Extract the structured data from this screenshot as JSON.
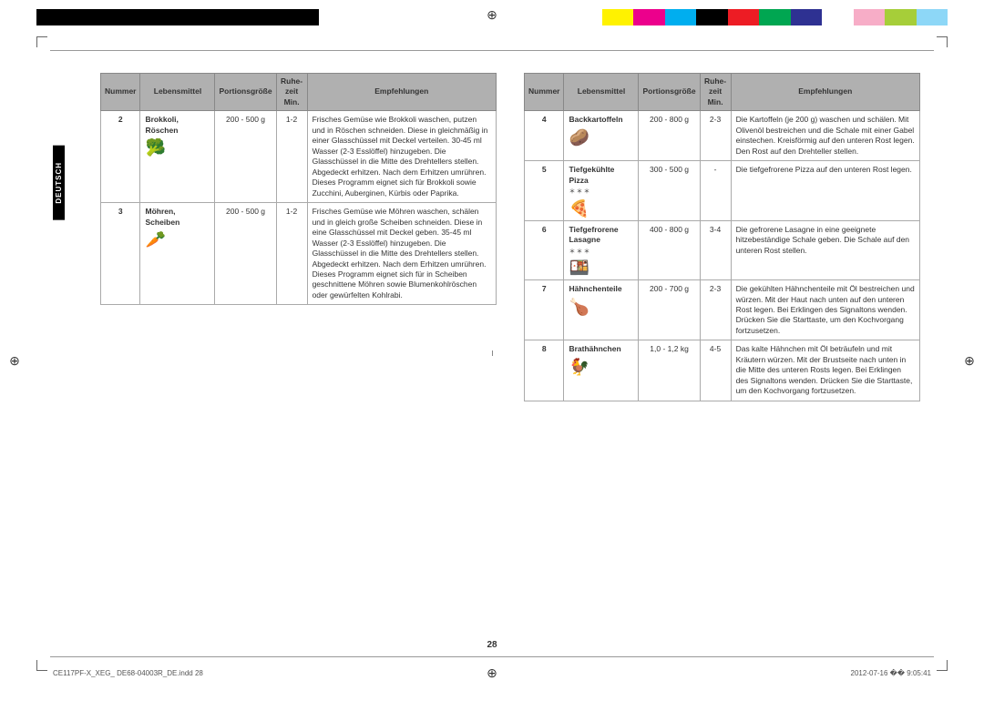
{
  "colorbar": [
    "#000",
    "#000",
    "#000",
    "#000",
    "#000",
    "#000",
    "#000",
    "#000",
    "#000",
    "#fff",
    "#fff",
    "#fff",
    "#fff",
    "#fff",
    "#fff",
    "#fff",
    "#fff",
    "#fff",
    "#fff200",
    "#ec008c",
    "#00aeef",
    "#000",
    "#ed1c24",
    "#00a651",
    "#2e3192",
    "#fff",
    "#f7adc7",
    "#a6ce39",
    "#8dd7f7"
  ],
  "lang_tab": "DEUTSCH",
  "headers": {
    "num": "Nummer",
    "food": "Lebensmittel",
    "portion": "Portionsgröße",
    "rest": "Ruhe-\nzeit\nMin.",
    "rec": "Empfehlungen"
  },
  "left_rows": [
    {
      "num": "2",
      "food_bold": "Brokkoli, Röschen",
      "icon": "broccoli-icon",
      "glyph": "🥦",
      "portion": "200 - 500 g",
      "rest": "1-2",
      "rec": "Frisches Gemüse wie Brokkoli waschen, putzen und in Röschen schneiden. Diese in gleichmäßig in einer Glasschüssel mit Deckel verteilen. 30-45 ml Wasser (2-3 Esslöffel) hinzugeben. Die Glasschüssel in die Mitte des Drehtellers stellen. Abgedeckt erhitzen. Nach dem Erhitzen umrühren. Dieses Programm eignet sich für Brokkoli sowie Zucchini, Auberginen, Kürbis oder Paprika."
    },
    {
      "num": "3",
      "food_bold": "Möhren, Scheiben",
      "icon": "carrot-icon",
      "glyph": "🥕",
      "portion": "200 - 500 g",
      "rest": "1-2",
      "rec": "Frisches Gemüse wie Möhren waschen, schälen und in gleich große Scheiben schneiden. Diese in eine Glasschüssel mit Deckel geben. 35-45 ml Wasser (2-3 Esslöffel) hinzugeben. Die Glasschüssel in die Mitte des Drehtellers stellen. Abgedeckt erhitzen. Nach dem Erhitzen umrühren. Dieses Programm eignet sich für in Scheiben geschnittene Möhren sowie Blumenkohlröschen oder gewürfelten Kohlrabi."
    }
  ],
  "right_rows": [
    {
      "num": "4",
      "food_bold": "Backkartoffeln",
      "icon": "potato-icon",
      "glyph": "🥔",
      "stars": "",
      "portion": "200 - 800 g",
      "rest": "2-3",
      "rec": "Die Kartoffeln (je 200 g) waschen und schälen. Mit Olivenöl bestreichen und die Schale mit einer Gabel einstechen. Kreisförmig auf den unteren Rost legen. Den Rost auf den Drehteller stellen."
    },
    {
      "num": "5",
      "food_bold": "Tiefgekühlte Pizza",
      "icon": "pizza-icon",
      "glyph": "🍕",
      "stars": "＊＊＊",
      "portion": "300 - 500 g",
      "rest": "-",
      "rec": "Die tiefgefrorene Pizza auf den unteren Rost legen."
    },
    {
      "num": "6",
      "food_bold": "Tiefgefrorene Lasagne",
      "icon": "lasagne-icon",
      "glyph": "🍱",
      "stars": "＊＊＊",
      "portion": "400 - 800 g",
      "rest": "3-4",
      "rec": "Die gefrorene Lasagne in eine geeignete hitzebeständige Schale geben. Die Schale auf den unteren Rost stellen."
    },
    {
      "num": "7",
      "food_bold": "Hähnchenteile",
      "icon": "chicken-pieces-icon",
      "glyph": "🍗",
      "stars": "",
      "portion": "200 - 700 g",
      "rest": "2-3",
      "rec": "Die gekühlten Hähnchenteile mit Öl bestreichen und würzen. Mit der Haut nach unten auf den unteren Rost legen. Bei Erklingen des Signaltons wenden. Drücken Sie die Starttaste, um den Kochvorgang fortzusetzen."
    },
    {
      "num": "8",
      "food_bold": "Brathähnchen",
      "icon": "roast-chicken-icon",
      "glyph": "🐓",
      "stars": "",
      "portion": "1,0 - 1,2 kg",
      "rest": "4-5",
      "rec": "Das kalte Hähnchen mit Öl beträufeln und mit Kräutern würzen. Mit der Brustseite nach unten in die Mitte des unteren Rosts legen. Bei Erklingen des Signaltons wenden. Drücken Sie die Starttaste, um den Kochvorgang fortzusetzen."
    }
  ],
  "page_number": "28",
  "footer_left": "CE117PF-X_XEG_ DE68-04003R_DE.indd   28",
  "footer_right": "2012-07-16   �� 9:05:41"
}
